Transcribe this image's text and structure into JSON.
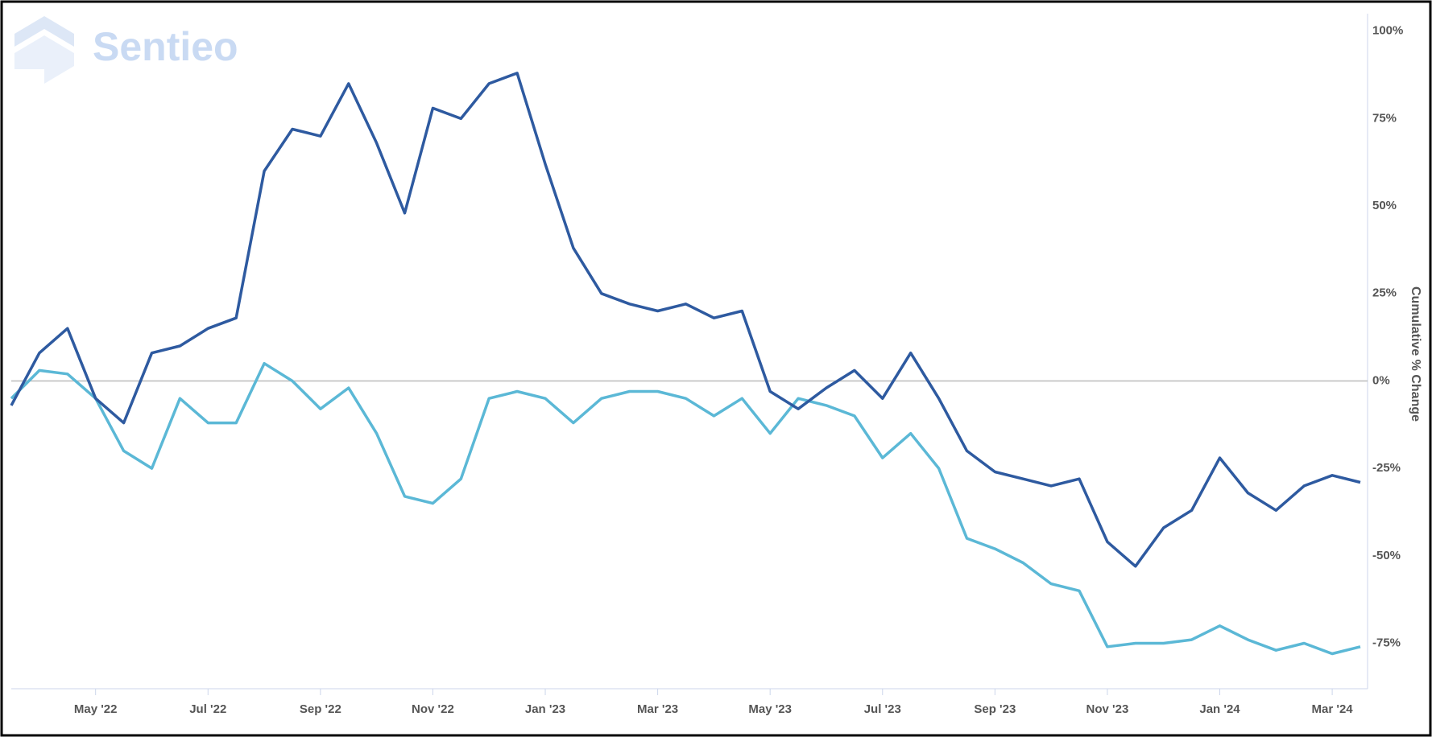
{
  "watermark": "Sentieo",
  "chart_data": {
    "type": "line",
    "y_axis_label": "Cumulative % Change",
    "categories": [
      null,
      null,
      null,
      "May '22",
      null,
      null,
      null,
      "Jul '22",
      null,
      null,
      null,
      "Sep '22",
      null,
      null,
      null,
      "Nov '22",
      null,
      null,
      null,
      "Jan '23",
      null,
      null,
      null,
      "Mar '23",
      null,
      null,
      null,
      "May '23",
      null,
      null,
      null,
      "Jul '23",
      null,
      null,
      null,
      "Sep '23",
      null,
      null,
      null,
      "Nov '23",
      null,
      null,
      null,
      "Jan '24",
      null,
      null,
      null,
      "Mar '24",
      null
    ],
    "series": [
      {
        "color": "#2e5aa0",
        "values": [
          -7,
          8,
          15,
          -5,
          -12,
          8,
          10,
          15,
          18,
          60,
          72,
          70,
          85,
          68,
          48,
          78,
          75,
          85,
          88,
          62,
          38,
          25,
          22,
          20,
          22,
          18,
          20,
          -3,
          -8,
          -2,
          3,
          -5,
          8,
          -5,
          -20,
          -26,
          -28,
          -30,
          -28,
          -46,
          -53,
          -42,
          -37,
          -22,
          -32,
          -37,
          -30,
          -27,
          -29
        ]
      },
      {
        "color": "#5bb8d6",
        "values": [
          -5,
          3,
          2,
          -5,
          -20,
          -25,
          -5,
          -12,
          -12,
          5,
          0,
          -8,
          -2,
          -15,
          -33,
          -35,
          -28,
          -5,
          -3,
          -5,
          -12,
          -5,
          -3,
          -3,
          -5,
          -10,
          -5,
          -15,
          -5,
          -7,
          -10,
          -22,
          -15,
          -25,
          -45,
          -48,
          -52,
          -58,
          -60,
          -76,
          -75,
          -75,
          -74,
          -70,
          -74,
          -77,
          -75,
          -78,
          -76
        ]
      }
    ],
    "ylim": [
      -88,
      105
    ],
    "yticks": [
      {
        "value": 100,
        "label": "100%"
      },
      {
        "value": 75,
        "label": "75%"
      },
      {
        "value": 50,
        "label": "50%"
      },
      {
        "value": 25,
        "label": "25%"
      },
      {
        "value": 0,
        "label": "0%"
      },
      {
        "value": -25,
        "label": "-25%"
      },
      {
        "value": -50,
        "label": "-50%"
      },
      {
        "value": -75,
        "label": "-75%"
      }
    ],
    "zero_line": true
  }
}
